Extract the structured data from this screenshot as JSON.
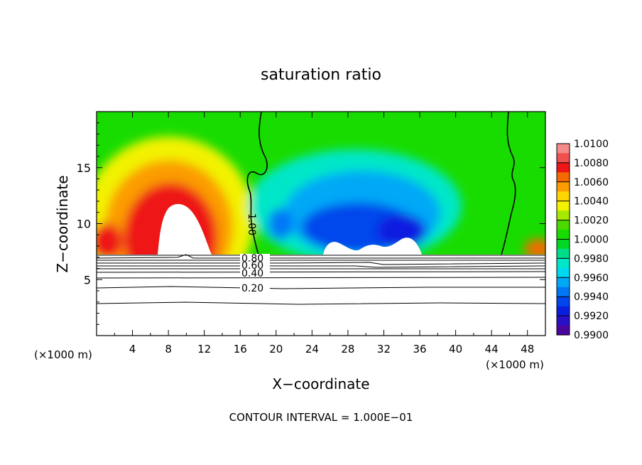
{
  "chart_data": {
    "type": "heatmap",
    "title": "saturation ratio",
    "xlabel": "X−coordinate",
    "ylabel": "Z−coordinate",
    "x_unit_left": "(×1000 m)",
    "x_unit_right": "(×1000 m)",
    "xlim": [
      0,
      50
    ],
    "ylim": [
      0,
      20
    ],
    "x_ticks": [
      4,
      8,
      12,
      16,
      20,
      24,
      28,
      32,
      36,
      40,
      44,
      48
    ],
    "y_ticks": [
      5,
      10,
      15
    ],
    "colorbar": {
      "ticks": [
        "1.0100",
        "1.0080",
        "1.0060",
        "1.0040",
        "1.0020",
        "1.0000",
        "0.9980",
        "0.9960",
        "0.9940",
        "0.9920",
        "0.9900"
      ],
      "colors": [
        "#f58a8a",
        "#f05050",
        "#ee1616",
        "#f46a00",
        "#fb9c00",
        "#ffd700",
        "#f2f200",
        "#a6ea00",
        "#4cd900",
        "#18dc00",
        "#00d825",
        "#00dd88",
        "#00e7c8",
        "#00d8f0",
        "#00a8f6",
        "#0078f6",
        "#0046ec",
        "#0a1ee0",
        "#2810c8",
        "#4a069e"
      ]
    },
    "contour_labels": [
      {
        "text": "1.00",
        "x": 17.5,
        "z": 10.0
      },
      {
        "text": "0.80",
        "x": 17.5,
        "z": 7.0
      },
      {
        "text": "0.60",
        "x": 17.5,
        "z": 6.4
      },
      {
        "text": "0.40",
        "x": 17.5,
        "z": 5.6
      },
      {
        "text": "0.20",
        "x": 17.5,
        "z": 4.2
      }
    ],
    "footer": "CONTOUR INTERVAL = 1.000E−01"
  }
}
